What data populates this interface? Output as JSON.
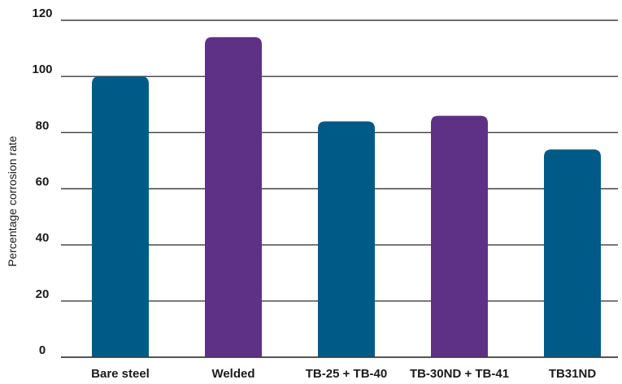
{
  "chart_data": {
    "type": "bar",
    "title": "",
    "xlabel": "",
    "ylabel": "Percentage corrosion rate",
    "ylim": [
      0,
      120
    ],
    "yticks": [
      0,
      20,
      40,
      60,
      80,
      100,
      120
    ],
    "grid": true,
    "categories": [
      "Bare steel",
      "Welded",
      "TB-25 + TB-40",
      "TB-30ND + TB-41",
      "TB31ND"
    ],
    "values": [
      100,
      114,
      84,
      86,
      74
    ],
    "bar_colors": [
      "#005a87",
      "#5e3186",
      "#005a87",
      "#5e3186",
      "#005a87"
    ]
  }
}
